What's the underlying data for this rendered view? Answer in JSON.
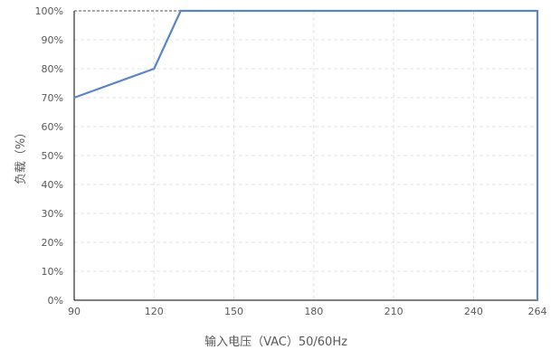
{
  "chart_data": {
    "type": "line",
    "title": "",
    "xlabel": "输入电压（VAC）50/60Hz",
    "ylabel": "负载（%）",
    "xlim": [
      90,
      264
    ],
    "ylim": [
      0,
      100
    ],
    "x_ticks": [
      90,
      120,
      150,
      180,
      210,
      240,
      264
    ],
    "x_tick_labels": [
      "90",
      "120",
      "150",
      "180",
      "210",
      "240",
      "264"
    ],
    "y_ticks": [
      0,
      10,
      20,
      30,
      40,
      50,
      60,
      70,
      80,
      90,
      100
    ],
    "y_tick_labels": [
      "0%",
      "10%",
      "20%",
      "30%",
      "40%",
      "50%",
      "60%",
      "70%",
      "80%",
      "90%",
      "100%"
    ],
    "grid": true,
    "legend": "none",
    "series": [
      {
        "x": [
          90,
          120,
          130,
          264,
          264
        ],
        "y": [
          70,
          80,
          100,
          100,
          0
        ],
        "color": "#5b86c5"
      }
    ],
    "reference_lines": [
      {
        "style": "dashed",
        "x": [
          90,
          130
        ],
        "y": [
          100,
          100
        ],
        "color": "#555555"
      }
    ],
    "colors": {
      "series": "#5b86c5",
      "grid": "#e3e3e3",
      "axis": "#000000",
      "text": "#595959"
    }
  }
}
